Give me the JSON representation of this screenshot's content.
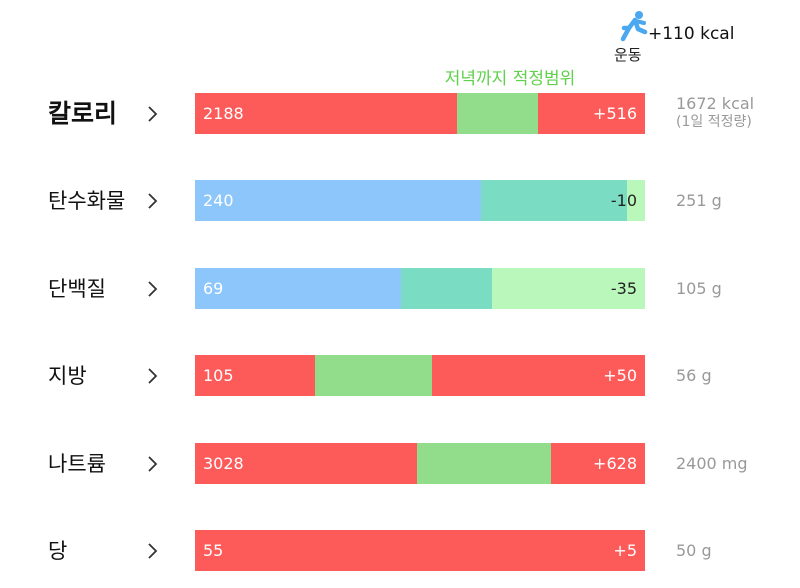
{
  "exercise": {
    "label": "운동",
    "value": "+110 kcal",
    "icon": "running-icon",
    "color": "#4aa8f0"
  },
  "range_label": "저녁까지 적정범위",
  "colors": {
    "over": "#fd5a5a",
    "in_range": "#92dd8c",
    "intake_blue": "#8cc6fb",
    "teal": "#7adcc2",
    "light_green": "#baf7ba"
  },
  "nutrients": [
    {
      "name": "칼로리",
      "value": "2188",
      "diff": "+516",
      "target": "1672 kcal",
      "target_sub": "(1일 적정량)",
      "status": "over"
    },
    {
      "name": "탄수화물",
      "value": "240",
      "diff": "-10",
      "target": "251 g",
      "status": "under"
    },
    {
      "name": "단백질",
      "value": "69",
      "diff": "-35",
      "target": "105 g",
      "status": "under"
    },
    {
      "name": "지방",
      "value": "105",
      "diff": "+50",
      "target": "56 g",
      "status": "over"
    },
    {
      "name": "나트륨",
      "value": "3028",
      "diff": "+628",
      "target": "2400 mg",
      "status": "over"
    },
    {
      "name": "당",
      "value": "55",
      "diff": "+5",
      "target": "50 g",
      "status": "over"
    }
  ]
}
